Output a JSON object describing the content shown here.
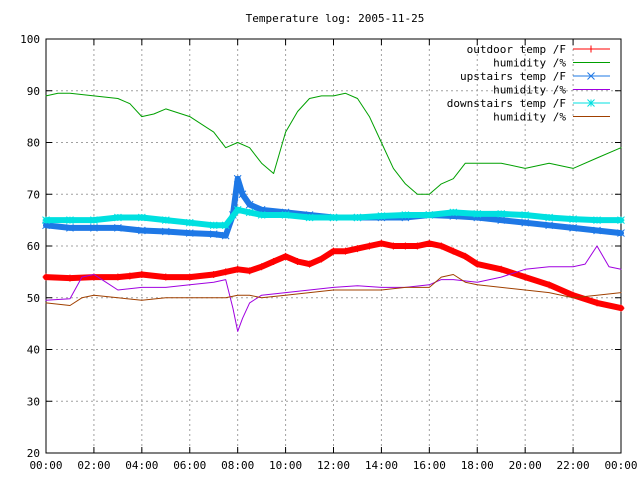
{
  "chart_data": {
    "type": "line",
    "title": "Temperature log: 2005-11-25",
    "xlabel": "",
    "ylabel": "",
    "x_ticks": [
      "00:00",
      "02:00",
      "04:00",
      "06:00",
      "08:00",
      "10:00",
      "12:00",
      "14:00",
      "16:00",
      "18:00",
      "20:00",
      "22:00",
      "00:00"
    ],
    "y_ticks": [
      20,
      30,
      40,
      50,
      60,
      70,
      80,
      90,
      100
    ],
    "xlim": [
      0,
      24
    ],
    "ylim": [
      20,
      100
    ],
    "grid": true,
    "legend_position": "top-right",
    "series": [
      {
        "name": "outdoor temp /F",
        "color": "#ff0000",
        "marker": "plus",
        "x": [
          0,
          1,
          2,
          3,
          3.5,
          4,
          5,
          6,
          7,
          7.5,
          8,
          8.5,
          9,
          9.5,
          10,
          10.5,
          11,
          11.5,
          12,
          12.5,
          13,
          13.5,
          14,
          14.5,
          15,
          15.5,
          16,
          16.5,
          17,
          17.5,
          18,
          19,
          20,
          21,
          22,
          23,
          24
        ],
        "y": [
          54,
          53.8,
          54,
          54,
          54.2,
          54.5,
          54,
          54,
          54.5,
          55,
          55.5,
          55.2,
          56,
          57,
          58,
          57,
          56.5,
          57.5,
          59,
          59,
          59.5,
          60,
          60.5,
          60,
          60,
          60,
          60.5,
          60,
          59,
          58,
          56.5,
          55.5,
          54,
          52.5,
          50.5,
          49,
          48
        ]
      },
      {
        "name": "humidity /%",
        "color": "#00a000",
        "marker": "none",
        "x": [
          0,
          0.5,
          1,
          2,
          3,
          3.5,
          4,
          4.5,
          5,
          6,
          7,
          7.5,
          8,
          8.5,
          9,
          9.5,
          10,
          10.5,
          11,
          11.5,
          12,
          12.5,
          13,
          13.5,
          14,
          14.5,
          15,
          15.5,
          16,
          16.5,
          17,
          17.5,
          18,
          19,
          20,
          21,
          22,
          23,
          24
        ],
        "y": [
          89,
          89.5,
          89.5,
          89,
          88.5,
          87.5,
          85,
          85.5,
          86.5,
          85,
          82,
          79,
          80,
          79,
          76,
          74,
          82,
          86,
          88.5,
          89,
          89,
          89.5,
          88.5,
          85,
          80,
          75,
          72,
          70,
          70,
          72,
          73,
          76,
          76,
          76,
          75,
          76,
          75,
          77,
          79
        ]
      },
      {
        "name": "upstairs temp /F",
        "color": "#1e78e6",
        "marker": "cross",
        "x": [
          0,
          1,
          2,
          3,
          4,
          5,
          6,
          7,
          7.5,
          7.8,
          8,
          8.2,
          8.5,
          9,
          10,
          11,
          12,
          13,
          14,
          15,
          16,
          17,
          18,
          19,
          20,
          21,
          22,
          23,
          24
        ],
        "y": [
          64,
          63.5,
          63.5,
          63.5,
          63,
          62.8,
          62.5,
          62.3,
          62,
          66,
          73,
          70,
          68,
          67,
          66.5,
          66,
          65.5,
          65.5,
          65.5,
          65.5,
          66,
          65.8,
          65.5,
          65,
          64.5,
          64,
          63.5,
          63,
          62.5
        ]
      },
      {
        "name": "humidity /%",
        "color": "#a000e0",
        "marker": "none",
        "x": [
          0,
          1,
          1.5,
          2,
          2.5,
          3,
          4,
          5,
          6,
          7,
          7.5,
          7.8,
          8,
          8.2,
          8.5,
          9,
          10,
          11,
          12,
          13,
          14,
          15,
          16,
          16.5,
          17,
          18,
          19,
          20,
          21,
          22,
          22.5,
          23,
          23.5,
          24
        ],
        "y": [
          49.5,
          49.8,
          54,
          54.5,
          53,
          51.5,
          52,
          52,
          52.5,
          53,
          53.5,
          48,
          43.5,
          46,
          49,
          50.5,
          51,
          51.5,
          52,
          52.3,
          52,
          52,
          52.5,
          53.5,
          53.5,
          53,
          54,
          55.5,
          56,
          56,
          56.5,
          60,
          56,
          55.5
        ]
      },
      {
        "name": "downstairs temp /F",
        "color": "#00e0e0",
        "marker": "star",
        "x": [
          0,
          1,
          2,
          3,
          4,
          5,
          6,
          7,
          7.5,
          8,
          8.5,
          9,
          10,
          11,
          12,
          13,
          14,
          15,
          16,
          17,
          18,
          19,
          20,
          21,
          22,
          23,
          24
        ],
        "y": [
          65,
          65,
          65,
          65.5,
          65.5,
          65,
          64.5,
          64,
          64,
          67,
          66.5,
          66,
          66,
          65.5,
          65.5,
          65.5,
          65.8,
          66,
          66,
          66.5,
          66.2,
          66.2,
          66,
          65.5,
          65.2,
          65,
          65
        ]
      },
      {
        "name": "humidity /%",
        "color": "#a04000",
        "marker": "none",
        "x": [
          0,
          1,
          1.5,
          2,
          3,
          4,
          5,
          6,
          7,
          7.5,
          8,
          8.5,
          9,
          10,
          11,
          12,
          13,
          14,
          15,
          16,
          16.5,
          17,
          17.5,
          18,
          19,
          20,
          21,
          22,
          23,
          24
        ],
        "y": [
          49,
          48.5,
          50,
          50.5,
          50,
          49.5,
          50,
          50,
          50,
          50,
          50.5,
          50.5,
          50,
          50.5,
          51,
          51.5,
          51.5,
          51.5,
          52,
          52,
          54,
          54.5,
          53,
          52.5,
          52,
          51.5,
          51,
          50,
          50.5,
          51
        ]
      }
    ]
  }
}
